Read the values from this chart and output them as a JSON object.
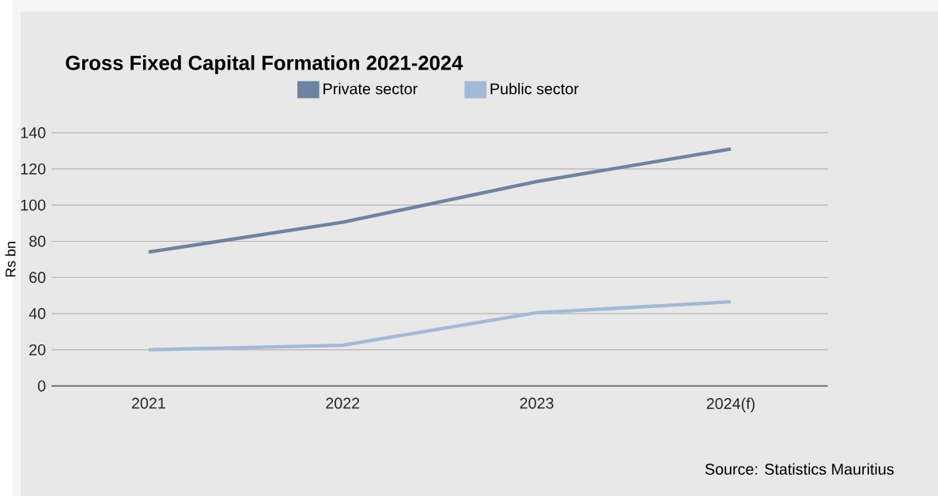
{
  "chart_data": {
    "type": "line",
    "title": "Gross Fixed Capital Formation 2021-2024",
    "ylabel": "Rs bn",
    "categories": [
      "2021",
      "2022",
      "2023",
      "2024(f)"
    ],
    "series": [
      {
        "name": "Private sector",
        "color": "#6e83a0",
        "values": [
          74,
          90.5,
          113,
          131
        ]
      },
      {
        "name": "Public sector",
        "color": "#a3b9d6",
        "values": [
          20,
          22.5,
          40.5,
          46.5
        ]
      }
    ],
    "ylim": [
      0,
      140
    ],
    "yticks": [
      0,
      20,
      40,
      60,
      80,
      100,
      120,
      140
    ],
    "grid": "y",
    "legend": "top",
    "annotations": [
      "Source: Statistics Mauritius"
    ]
  }
}
